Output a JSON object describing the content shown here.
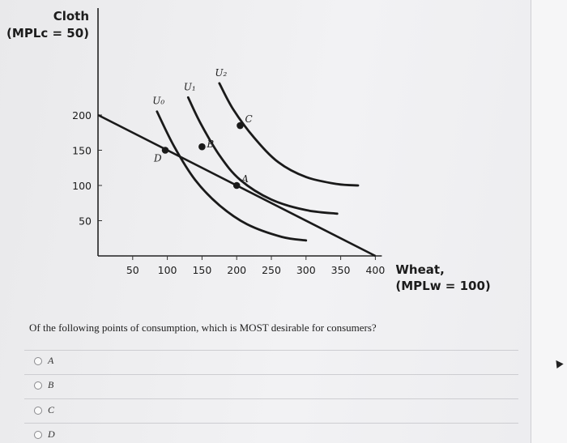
{
  "question": {
    "text": "Of the following points of consumption, which is MOST desirable for consumers?",
    "options": [
      {
        "label": "A"
      },
      {
        "label": "B"
      },
      {
        "label": "C"
      },
      {
        "label": "D"
      }
    ]
  },
  "chart_data": {
    "type": "line",
    "ylabel": [
      "Cloth",
      "(MPLc = 50)"
    ],
    "xlabel": [
      "Wheat,",
      "(MPLw = 100)"
    ],
    "xlim": [
      0,
      400
    ],
    "ylim": [
      0,
      200
    ],
    "x_ticks": [
      50,
      100,
      150,
      200,
      250,
      300,
      350,
      400
    ],
    "y_ticks": [
      50,
      100,
      150,
      200
    ],
    "grid": false,
    "budget_line": [
      [
        0,
        200
      ],
      [
        400,
        0
      ]
    ],
    "series": [
      {
        "name": "U0",
        "x": [
          85,
          110,
          140,
          175,
          215,
          265,
          300
        ],
        "y": [
          205,
          155,
          108,
          72,
          45,
          27,
          22
        ]
      },
      {
        "name": "U1",
        "x": [
          130,
          148,
          175,
          205,
          250,
          300,
          345
        ],
        "y": [
          225,
          188,
          143,
          108,
          80,
          65,
          60
        ]
      },
      {
        "name": "U2",
        "x": [
          175,
          195,
          225,
          260,
          300,
          345,
          375
        ],
        "y": [
          245,
          208,
          168,
          133,
          112,
          102,
          100
        ]
      }
    ],
    "points": [
      {
        "label": "A",
        "x": 200,
        "y": 100
      },
      {
        "label": "B",
        "x": 150,
        "y": 155
      },
      {
        "label": "C",
        "x": 205,
        "y": 185
      },
      {
        "label": "D",
        "x": 97,
        "y": 150
      }
    ]
  }
}
